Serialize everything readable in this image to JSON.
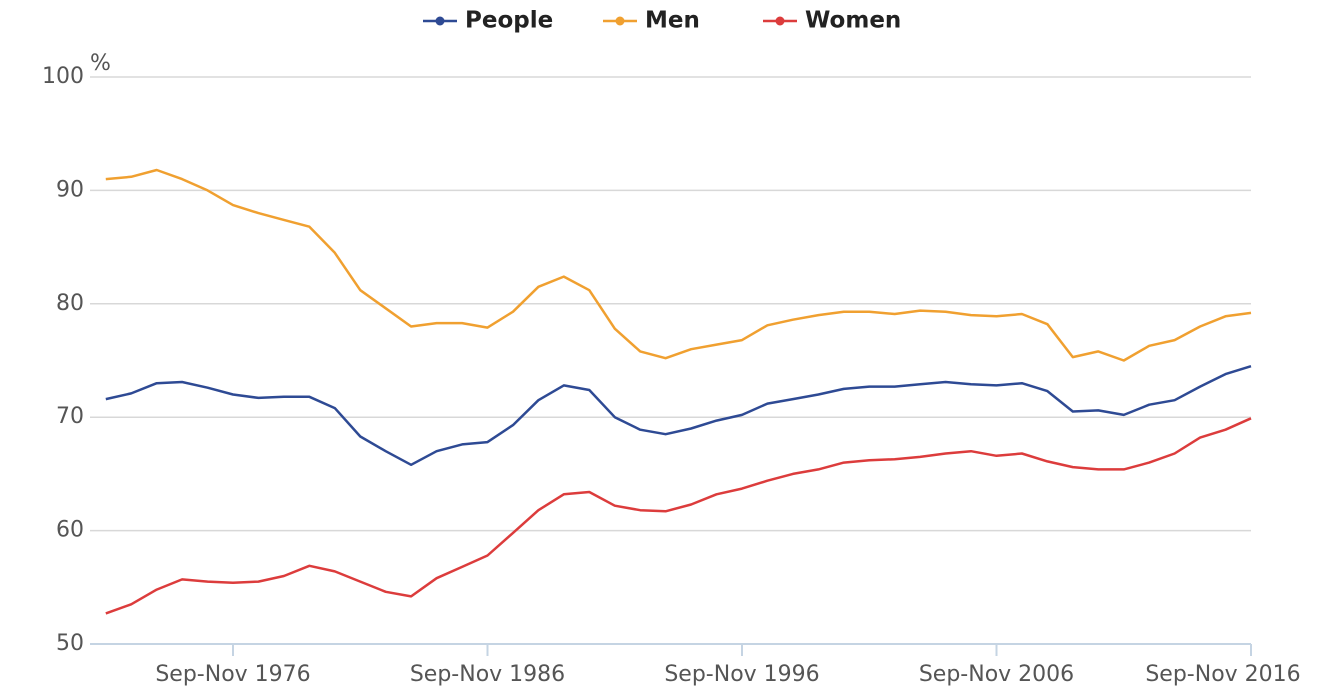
{
  "chart_data": {
    "type": "line",
    "y_unit": "%",
    "categories": [
      null,
      null,
      null,
      null,
      null,
      "Sep-Nov 1976",
      null,
      null,
      null,
      null,
      null,
      null,
      null,
      null,
      null,
      "Sep-Nov 1986",
      null,
      null,
      null,
      null,
      null,
      null,
      null,
      null,
      null,
      "Sep-Nov 1996",
      null,
      null,
      null,
      null,
      null,
      null,
      null,
      null,
      null,
      "Sep-Nov 2006",
      null,
      null,
      null,
      null,
      null,
      null,
      null,
      null,
      null,
      "Sep-Nov 2016"
    ],
    "series": [
      {
        "name": "People",
        "color": "#2e4a94",
        "values": [
          71.6,
          72.1,
          73.0,
          73.1,
          72.6,
          72.0,
          71.7,
          71.8,
          71.8,
          70.8,
          68.3,
          67.0,
          65.8,
          67.0,
          67.6,
          67.8,
          69.3,
          71.5,
          72.8,
          72.4,
          70.0,
          68.9,
          68.5,
          69.0,
          69.7,
          70.2,
          71.2,
          71.6,
          72.0,
          72.5,
          72.7,
          72.7,
          72.9,
          73.1,
          72.9,
          72.8,
          73.0,
          72.3,
          70.5,
          70.6,
          70.2,
          71.1,
          71.5,
          72.7,
          73.8,
          74.5
        ]
      },
      {
        "name": "Men",
        "color": "#f0a030",
        "values": [
          91.0,
          91.2,
          91.8,
          91.0,
          90.0,
          88.7,
          88.0,
          87.4,
          86.8,
          84.5,
          81.2,
          79.6,
          78.0,
          78.3,
          78.3,
          77.9,
          79.3,
          81.5,
          82.4,
          81.2,
          77.8,
          75.8,
          75.2,
          76.0,
          76.4,
          76.8,
          78.1,
          78.6,
          79.0,
          79.3,
          79.3,
          79.1,
          79.4,
          79.3,
          79.0,
          78.9,
          79.1,
          78.2,
          75.3,
          75.8,
          75.0,
          76.3,
          76.8,
          78.0,
          78.9,
          79.2
        ]
      },
      {
        "name": "Women",
        "color": "#dc3c3c",
        "values": [
          52.7,
          53.5,
          54.8,
          55.7,
          55.5,
          55.4,
          55.5,
          56.0,
          56.9,
          56.4,
          55.5,
          54.6,
          54.2,
          55.8,
          56.8,
          57.8,
          59.8,
          61.8,
          63.2,
          63.4,
          62.2,
          61.8,
          61.7,
          62.3,
          63.2,
          63.7,
          64.4,
          65.0,
          65.4,
          66.0,
          66.2,
          66.3,
          66.5,
          66.8,
          67.0,
          66.6,
          66.8,
          66.1,
          65.6,
          65.4,
          65.4,
          66.0,
          66.8,
          68.2,
          68.9,
          69.9
        ]
      }
    ],
    "ylim": [
      50,
      100
    ],
    "yticks": [
      50,
      60,
      70,
      80,
      90,
      100
    ],
    "grid": true,
    "legend": "top"
  }
}
